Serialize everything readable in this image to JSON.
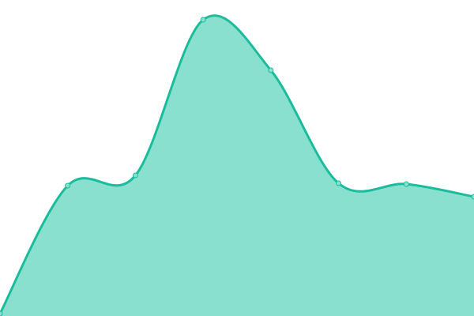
{
  "chart_data": {
    "type": "area",
    "x": [
      0,
      1,
      2,
      3,
      4,
      5,
      6,
      7
    ],
    "values": [
      3,
      165,
      178,
      375,
      311,
      168,
      167,
      151
    ],
    "ylim": [
      0,
      400
    ],
    "grid": false,
    "smooth": true,
    "markers": true,
    "colors": {
      "line": "#1abc9c",
      "fill": "#8ae0cf",
      "marker": "#8ae0cf"
    }
  }
}
